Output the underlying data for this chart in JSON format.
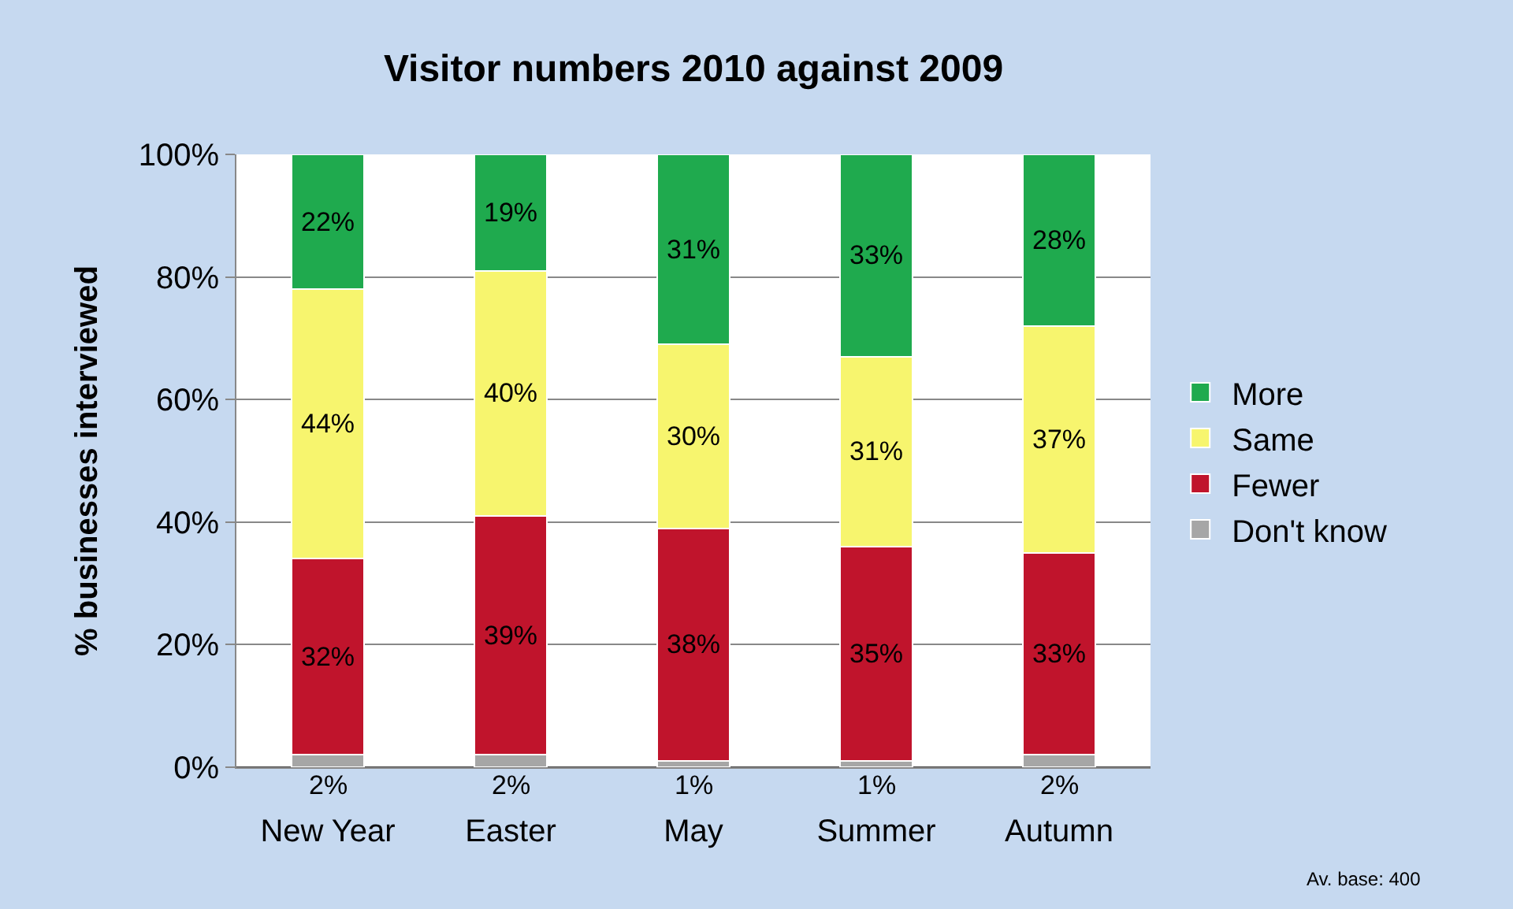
{
  "chart_data": {
    "type": "bar",
    "title": "Visitor numbers 2010 against 2009",
    "ylabel": "% businesses interviewed",
    "categories": [
      "New Year",
      "Easter",
      "May",
      "Summer",
      "Autumn"
    ],
    "series": [
      {
        "name": "Don't know",
        "color": "#a6a6a6",
        "values": [
          2,
          2,
          1,
          1,
          2
        ],
        "value_labels": [
          "2%",
          "2%",
          "1%",
          "1%",
          "2%"
        ]
      },
      {
        "name": "Fewer",
        "color": "#c0142c",
        "values": [
          32,
          39,
          38,
          35,
          33
        ],
        "value_labels": [
          "32%",
          "39%",
          "38%",
          "35%",
          "33%"
        ]
      },
      {
        "name": "Same",
        "color": "#f7f56e",
        "values": [
          44,
          40,
          30,
          31,
          37
        ],
        "value_labels": [
          "44%",
          "40%",
          "30%",
          "31%",
          "37%"
        ]
      },
      {
        "name": "More",
        "color": "#1faa4e",
        "values": [
          22,
          19,
          31,
          33,
          28
        ],
        "value_labels": [
          "22%",
          "19%",
          "31%",
          "33%",
          "28%"
        ]
      }
    ],
    "stacked": true,
    "ylim": [
      0,
      100
    ],
    "yticks": [
      {
        "value": 0,
        "label": "0%"
      },
      {
        "value": 20,
        "label": "20%"
      },
      {
        "value": 40,
        "label": "40%"
      },
      {
        "value": 60,
        "label": "60%"
      },
      {
        "value": 80,
        "label": "80%"
      },
      {
        "value": 100,
        "label": "100%"
      }
    ],
    "grid": "y",
    "legend": "right",
    "annotations": [
      "Av. base: 400"
    ]
  }
}
